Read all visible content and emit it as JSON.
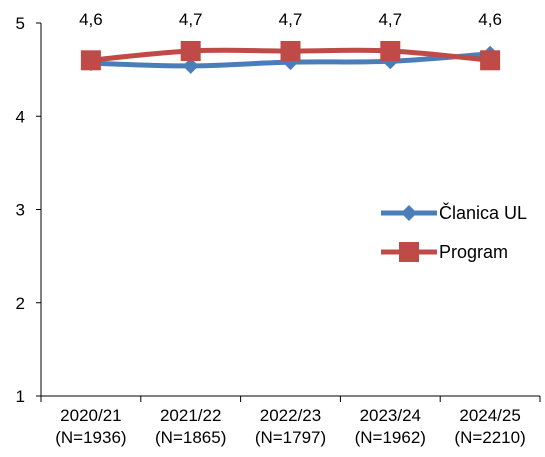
{
  "chart_data": {
    "type": "line",
    "categories": [
      [
        "2020/21",
        "(N=1936)"
      ],
      [
        "2021/22",
        "(N=1865)"
      ],
      [
        "2022/23",
        "(N=1797)"
      ],
      [
        "2023/24",
        "(N=1962)"
      ],
      [
        "2024/25",
        "(N=2210)"
      ]
    ],
    "series": [
      {
        "name": "Članica UL",
        "values": [
          4.57,
          4.54,
          4.58,
          4.59,
          4.67
        ],
        "color": "#4a7ebb",
        "marker": "diamond"
      },
      {
        "name": "Program",
        "values": [
          4.6,
          4.7,
          4.7,
          4.7,
          4.6
        ],
        "color": "#be4b48",
        "marker": "square"
      }
    ],
    "data_labels": [
      "4,6",
      "4,7",
      "4,7",
      "4,7",
      "4,6"
    ],
    "y_ticks": [
      "1",
      "2",
      "3",
      "4",
      "5"
    ],
    "ylim": [
      1,
      5
    ],
    "grid": false,
    "legend_position": "right"
  }
}
